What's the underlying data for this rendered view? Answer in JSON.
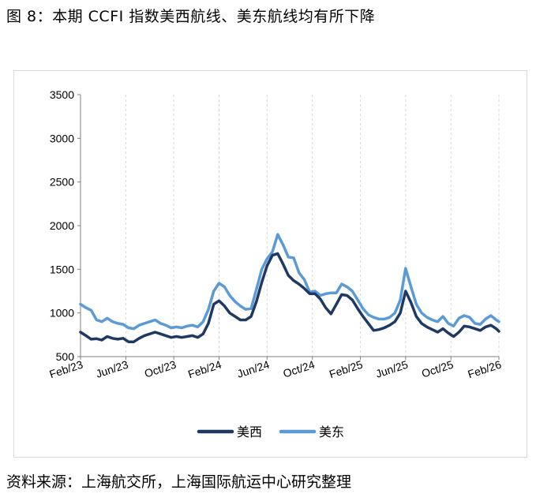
{
  "figure": {
    "title": "图 8：本期 CCFI 指数美西航线、美东航线均有所下降",
    "source": "资料来源：上海航交所，上海国际航运中心研究整理"
  },
  "colors": {
    "us_west": "#1f3864",
    "us_east": "#5b9bd5",
    "grid": "#d9d9d9",
    "axis": "#7f7f7f"
  },
  "chart_data": {
    "type": "line",
    "title": "",
    "xlabel": "",
    "ylabel": "",
    "ylim": [
      500,
      3500
    ],
    "yticks": [
      500,
      1000,
      1500,
      2000,
      2500,
      3000,
      3500
    ],
    "xlim": [
      "2023-02-03",
      "2026-02-06"
    ],
    "xtick_labels": [
      "Feb/23",
      "Jun/23",
      "Oct/23",
      "Feb/24",
      "Jun/24",
      "Oct/24",
      "Feb/25",
      "Jun/25",
      "Oct/25",
      "Feb/26"
    ],
    "xtick_dates": [
      "2023-02-03",
      "2023-06-02",
      "2023-10-06",
      "2024-02-02",
      "2024-06-07",
      "2024-10-04",
      "2025-02-07",
      "2025-06-06",
      "2025-10-03",
      "2026-02-06"
    ],
    "grid": "vertical dashed",
    "legend_position": "bottom",
    "series": [
      {
        "name": "美西",
        "color": "#1f3864",
        "points": [
          [
            "2023-02-03",
            780
          ],
          [
            "2023-02-17",
            740
          ],
          [
            "2023-03-03",
            700
          ],
          [
            "2023-03-17",
            705
          ],
          [
            "2023-03-31",
            690
          ],
          [
            "2023-04-14",
            730
          ],
          [
            "2023-04-28",
            710
          ],
          [
            "2023-05-12",
            700
          ],
          [
            "2023-05-26",
            710
          ],
          [
            "2023-06-09",
            670
          ],
          [
            "2023-06-23",
            670
          ],
          [
            "2023-07-07",
            710
          ],
          [
            "2023-07-21",
            740
          ],
          [
            "2023-08-04",
            760
          ],
          [
            "2023-08-18",
            780
          ],
          [
            "2023-09-01",
            760
          ],
          [
            "2023-09-15",
            740
          ],
          [
            "2023-09-29",
            720
          ],
          [
            "2023-10-13",
            730
          ],
          [
            "2023-10-27",
            720
          ],
          [
            "2023-11-10",
            730
          ],
          [
            "2023-11-24",
            740
          ],
          [
            "2023-12-08",
            720
          ],
          [
            "2023-12-22",
            760
          ],
          [
            "2024-01-05",
            880
          ],
          [
            "2024-01-19",
            1100
          ],
          [
            "2024-02-02",
            1140
          ],
          [
            "2024-02-16",
            1080
          ],
          [
            "2024-03-01",
            1000
          ],
          [
            "2024-03-15",
            960
          ],
          [
            "2024-03-29",
            920
          ],
          [
            "2024-04-12",
            920
          ],
          [
            "2024-04-26",
            960
          ],
          [
            "2024-05-10",
            1130
          ],
          [
            "2024-05-24",
            1350
          ],
          [
            "2024-06-07",
            1540
          ],
          [
            "2024-06-21",
            1660
          ],
          [
            "2024-07-05",
            1680
          ],
          [
            "2024-07-19",
            1560
          ],
          [
            "2024-08-02",
            1430
          ],
          [
            "2024-08-16",
            1370
          ],
          [
            "2024-08-30",
            1330
          ],
          [
            "2024-09-13",
            1280
          ],
          [
            "2024-09-27",
            1220
          ],
          [
            "2024-10-11",
            1220
          ],
          [
            "2024-10-25",
            1160
          ],
          [
            "2024-11-08",
            1060
          ],
          [
            "2024-11-22",
            990
          ],
          [
            "2024-12-06",
            1100
          ],
          [
            "2024-12-20",
            1210
          ],
          [
            "2025-01-03",
            1200
          ],
          [
            "2025-01-17",
            1150
          ],
          [
            "2025-01-31",
            1050
          ],
          [
            "2025-02-14",
            960
          ],
          [
            "2025-02-28",
            880
          ],
          [
            "2025-03-14",
            800
          ],
          [
            "2025-03-28",
            810
          ],
          [
            "2025-04-11",
            830
          ],
          [
            "2025-04-25",
            860
          ],
          [
            "2025-05-09",
            900
          ],
          [
            "2025-05-23",
            1000
          ],
          [
            "2025-06-06",
            1250
          ],
          [
            "2025-06-20",
            1120
          ],
          [
            "2025-07-04",
            960
          ],
          [
            "2025-07-18",
            880
          ],
          [
            "2025-08-01",
            840
          ],
          [
            "2025-08-15",
            810
          ],
          [
            "2025-08-29",
            780
          ],
          [
            "2025-09-12",
            820
          ],
          [
            "2025-09-26",
            770
          ],
          [
            "2025-10-10",
            730
          ],
          [
            "2025-10-24",
            780
          ],
          [
            "2025-11-07",
            850
          ],
          [
            "2025-11-21",
            840
          ],
          [
            "2025-12-05",
            820
          ],
          [
            "2025-12-19",
            800
          ],
          [
            "2026-01-02",
            840
          ],
          [
            "2026-01-16",
            860
          ],
          [
            "2026-01-30",
            820
          ],
          [
            "2026-02-06",
            790
          ]
        ]
      },
      {
        "name": "美东",
        "color": "#5b9bd5",
        "points": [
          [
            "2023-02-03",
            1100
          ],
          [
            "2023-02-17",
            1060
          ],
          [
            "2023-03-03",
            1030
          ],
          [
            "2023-03-17",
            920
          ],
          [
            "2023-03-31",
            900
          ],
          [
            "2023-04-14",
            940
          ],
          [
            "2023-04-28",
            900
          ],
          [
            "2023-05-12",
            880
          ],
          [
            "2023-05-26",
            870
          ],
          [
            "2023-06-09",
            830
          ],
          [
            "2023-06-23",
            820
          ],
          [
            "2023-07-07",
            860
          ],
          [
            "2023-07-21",
            880
          ],
          [
            "2023-08-04",
            900
          ],
          [
            "2023-08-18",
            920
          ],
          [
            "2023-09-01",
            880
          ],
          [
            "2023-09-15",
            860
          ],
          [
            "2023-09-29",
            830
          ],
          [
            "2023-10-13",
            840
          ],
          [
            "2023-10-27",
            830
          ],
          [
            "2023-11-10",
            850
          ],
          [
            "2023-11-24",
            860
          ],
          [
            "2023-12-08",
            840
          ],
          [
            "2023-12-22",
            900
          ],
          [
            "2024-01-05",
            1040
          ],
          [
            "2024-01-19",
            1250
          ],
          [
            "2024-02-02",
            1340
          ],
          [
            "2024-02-16",
            1300
          ],
          [
            "2024-03-01",
            1200
          ],
          [
            "2024-03-15",
            1130
          ],
          [
            "2024-03-29",
            1080
          ],
          [
            "2024-04-12",
            1040
          ],
          [
            "2024-04-26",
            1050
          ],
          [
            "2024-05-10",
            1270
          ],
          [
            "2024-05-24",
            1500
          ],
          [
            "2024-06-07",
            1620
          ],
          [
            "2024-06-21",
            1700
          ],
          [
            "2024-07-05",
            1900
          ],
          [
            "2024-07-19",
            1780
          ],
          [
            "2024-08-02",
            1640
          ],
          [
            "2024-08-16",
            1630
          ],
          [
            "2024-08-30",
            1460
          ],
          [
            "2024-09-13",
            1380
          ],
          [
            "2024-09-27",
            1240
          ],
          [
            "2024-10-11",
            1250
          ],
          [
            "2024-10-25",
            1200
          ],
          [
            "2024-11-08",
            1220
          ],
          [
            "2024-11-22",
            1230
          ],
          [
            "2024-12-06",
            1230
          ],
          [
            "2024-12-20",
            1330
          ],
          [
            "2025-01-03",
            1300
          ],
          [
            "2025-01-17",
            1250
          ],
          [
            "2025-01-31",
            1150
          ],
          [
            "2025-02-14",
            1050
          ],
          [
            "2025-02-28",
            980
          ],
          [
            "2025-03-14",
            950
          ],
          [
            "2025-03-28",
            930
          ],
          [
            "2025-04-11",
            930
          ],
          [
            "2025-04-25",
            950
          ],
          [
            "2025-05-09",
            1000
          ],
          [
            "2025-05-23",
            1150
          ],
          [
            "2025-06-06",
            1510
          ],
          [
            "2025-06-20",
            1300
          ],
          [
            "2025-07-04",
            1100
          ],
          [
            "2025-07-18",
            1000
          ],
          [
            "2025-08-01",
            950
          ],
          [
            "2025-08-15",
            920
          ],
          [
            "2025-08-29",
            900
          ],
          [
            "2025-09-12",
            960
          ],
          [
            "2025-09-26",
            880
          ],
          [
            "2025-10-10",
            850
          ],
          [
            "2025-10-24",
            940
          ],
          [
            "2025-11-07",
            970
          ],
          [
            "2025-11-21",
            950
          ],
          [
            "2025-12-05",
            880
          ],
          [
            "2025-12-19",
            870
          ],
          [
            "2026-01-02",
            930
          ],
          [
            "2026-01-16",
            970
          ],
          [
            "2026-01-30",
            920
          ],
          [
            "2026-02-06",
            900
          ]
        ]
      }
    ]
  }
}
